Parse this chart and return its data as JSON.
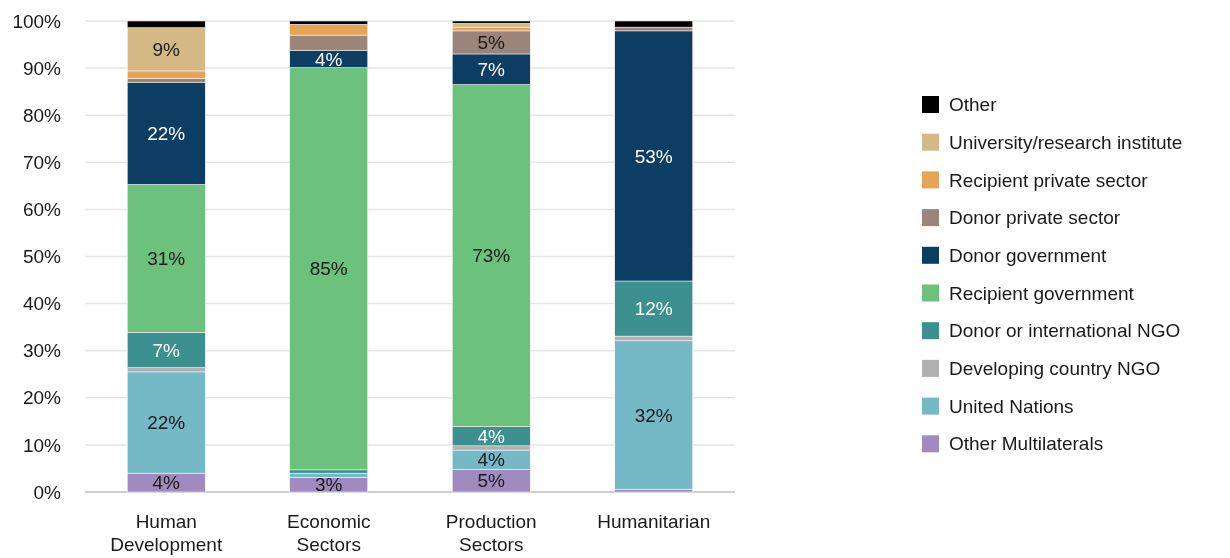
{
  "chart_data": {
    "type": "bar",
    "stacked": true,
    "categories": [
      "Human Development",
      "Economic Sectors",
      "Production Sectors",
      "Humanitarian"
    ],
    "series": [
      {
        "name": "Other Multilaterals",
        "color": "#a08bc0",
        "values": [
          4,
          3.1,
          4.8,
          0.6
        ],
        "value_labels": [
          "4%",
          "3%",
          "5%",
          null
        ]
      },
      {
        "name": "United Nations",
        "color": "#75b8c6",
        "values": [
          21.5,
          0.9,
          4.1,
          31.5
        ],
        "value_labels": [
          "22%",
          null,
          "4%",
          "32%"
        ]
      },
      {
        "name": "Developing country NGO",
        "color": "#b0b0b0",
        "values": [
          0.9,
          0,
          0.9,
          1.0
        ],
        "value_labels": [
          null,
          null,
          null,
          null
        ]
      },
      {
        "name": "Donor or international NGO",
        "color": "#3d9090",
        "values": [
          7.5,
          0.7,
          4.1,
          11.7
        ],
        "value_labels": [
          "7%",
          null,
          "4%",
          "12%"
        ]
      },
      {
        "name": "Recipient government",
        "color": "#6cc17c",
        "values": [
          31.4,
          85.4,
          72.6,
          0
        ],
        "value_labels": [
          "31%",
          "85%",
          "73%",
          null
        ]
      },
      {
        "name": "Donor government",
        "color": "#0c3d63",
        "values": [
          21.6,
          3.6,
          6.5,
          53.1
        ],
        "value_labels": [
          "22%",
          "4%",
          "7%",
          "53%"
        ]
      },
      {
        "name": "Donor private sector",
        "color": "#9b857a",
        "values": [
          0.9,
          3.3,
          4.9,
          0.8
        ],
        "value_labels": [
          null,
          null,
          "5%",
          null
        ]
      },
      {
        "name": "Recipient private sector",
        "color": "#e5a556",
        "values": [
          1.6,
          2.3,
          0.8,
          0
        ],
        "value_labels": [
          null,
          null,
          null,
          null
        ]
      },
      {
        "name": "University/research institute",
        "color": "#d4b987",
        "values": [
          9.2,
          0,
          0.8,
          0
        ],
        "value_labels": [
          "9%",
          null,
          null,
          null
        ]
      },
      {
        "name": "Other",
        "color": "#000000",
        "values": [
          1.4,
          0.7,
          0.5,
          1.3
        ],
        "value_labels": [
          null,
          null,
          null,
          null
        ]
      }
    ],
    "ylim": [
      0,
      100
    ],
    "yticks": [
      {
        "value": 0,
        "label": "0%"
      },
      {
        "value": 10,
        "label": "10%"
      },
      {
        "value": 20,
        "label": "20%"
      },
      {
        "value": 30,
        "label": "30%"
      },
      {
        "value": 40,
        "label": "40%"
      },
      {
        "value": 50,
        "label": "50%"
      },
      {
        "value": 60,
        "label": "60%"
      },
      {
        "value": 70,
        "label": "70%"
      },
      {
        "value": 80,
        "label": "80%"
      },
      {
        "value": 90,
        "label": "90%"
      },
      {
        "value": 100,
        "label": "100%"
      }
    ],
    "grid": "y",
    "legend": "right"
  }
}
